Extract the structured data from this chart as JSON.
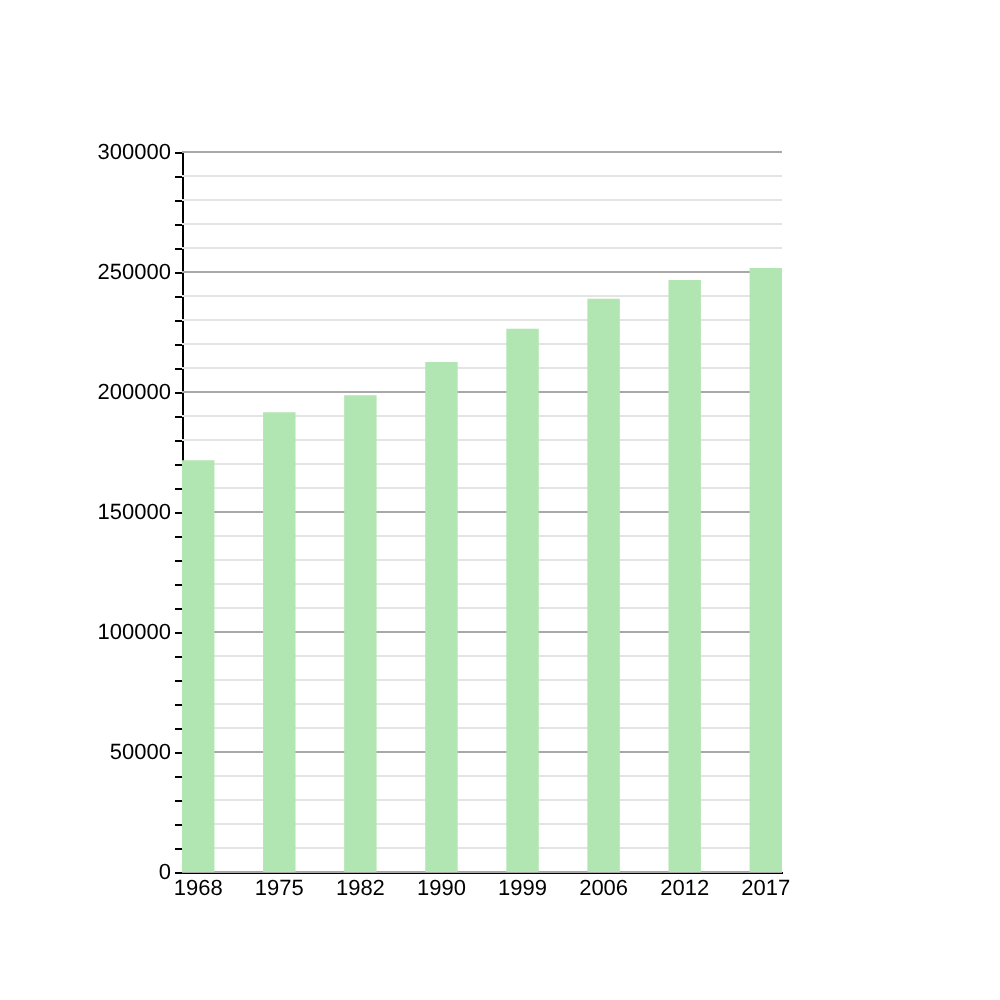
{
  "chart_data": {
    "type": "bar",
    "categories": [
      "1968",
      "1975",
      "1982",
      "1990",
      "1999",
      "2006",
      "2012",
      "2017"
    ],
    "values": [
      171600,
      191600,
      198600,
      212500,
      226400,
      238900,
      246700,
      251700
    ],
    "color": "#b1e5b1",
    "ylim": [
      0,
      300000
    ],
    "yticks": [
      0,
      {
        "value": 10000,
        "label": null
      },
      {
        "value": 20000,
        "label": null
      },
      {
        "value": 30000,
        "label": null
      },
      {
        "value": 40000,
        "label": null
      },
      50000,
      {
        "value": 60000,
        "label": null
      },
      {
        "value": 70000,
        "label": null
      },
      {
        "value": 80000,
        "label": null
      },
      {
        "value": 90000,
        "label": null
      },
      100000,
      {
        "value": 110000,
        "label": null
      },
      {
        "value": 120000,
        "label": null
      },
      {
        "value": 130000,
        "label": null
      },
      {
        "value": 140000,
        "label": null
      },
      150000,
      {
        "value": 160000,
        "label": null
      },
      {
        "value": 170000,
        "label": null
      },
      {
        "value": 180000,
        "label": null
      },
      {
        "value": 190000,
        "label": null
      },
      200000,
      {
        "value": 210000,
        "label": null
      },
      {
        "value": 220000,
        "label": null
      },
      {
        "value": 230000,
        "label": null
      },
      {
        "value": 240000,
        "label": null
      },
      250000,
      {
        "value": 260000,
        "label": null
      },
      {
        "value": 270000,
        "label": null
      },
      {
        "value": 280000,
        "label": null
      },
      {
        "value": 290000,
        "label": null
      },
      300000
    ],
    "grid": true
  }
}
